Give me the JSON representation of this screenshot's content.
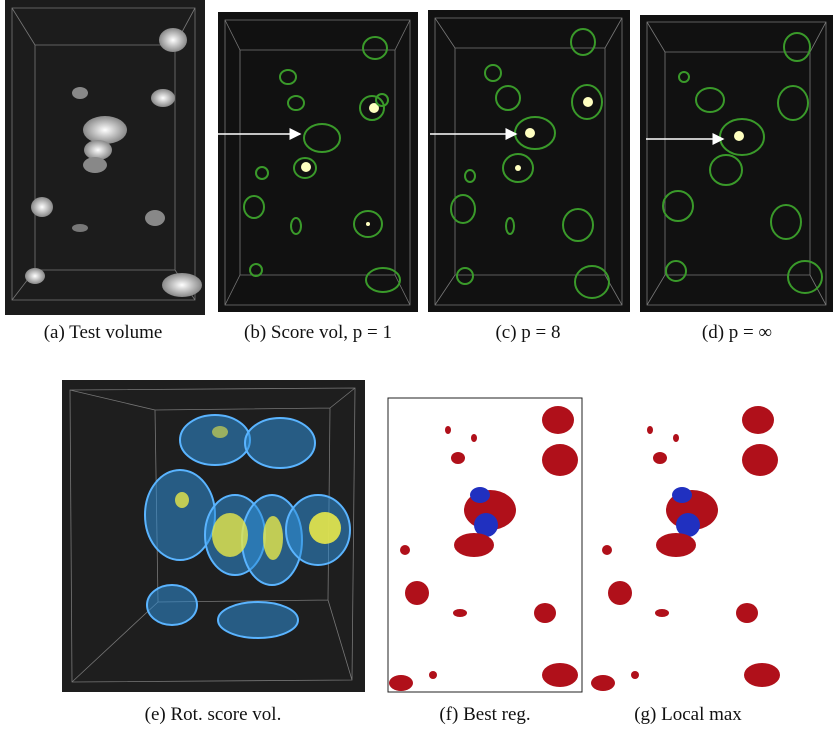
{
  "figure": {
    "panels": [
      {
        "caption": "(a) Test volume"
      },
      {
        "caption": "(b) Score vol, p = 1"
      },
      {
        "caption": "(c) p = 8"
      },
      {
        "caption": "(d) p = ∞"
      },
      {
        "caption": "(e) Rot. score vol."
      },
      {
        "caption": "(f) Best reg."
      },
      {
        "caption": "(g) Local max"
      }
    ]
  }
}
